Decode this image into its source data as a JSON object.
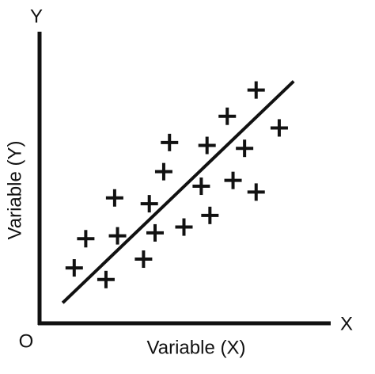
{
  "chart_data": {
    "type": "scatter",
    "y_axis_name": "Y",
    "x_axis_name": "X",
    "origin_label": "O",
    "y_label": "Variable (Y)",
    "x_label": "Variable (X)",
    "xlim": [
      0,
      100
    ],
    "ylim": [
      0,
      100
    ],
    "color": "#111111",
    "x": [
      12,
      16,
      23,
      26,
      27,
      36,
      38,
      40,
      43,
      45,
      50,
      56,
      59,
      58,
      65,
      67,
      71,
      75,
      75,
      83
    ],
    "values": [
      19,
      29,
      15,
      43,
      30,
      22,
      41,
      31,
      52,
      62,
      33,
      47,
      37,
      61,
      71,
      49,
      60,
      45,
      80,
      67
    ],
    "trend_line": {
      "x": [
        8,
        88
      ],
      "values": [
        7,
        83
      ]
    }
  }
}
